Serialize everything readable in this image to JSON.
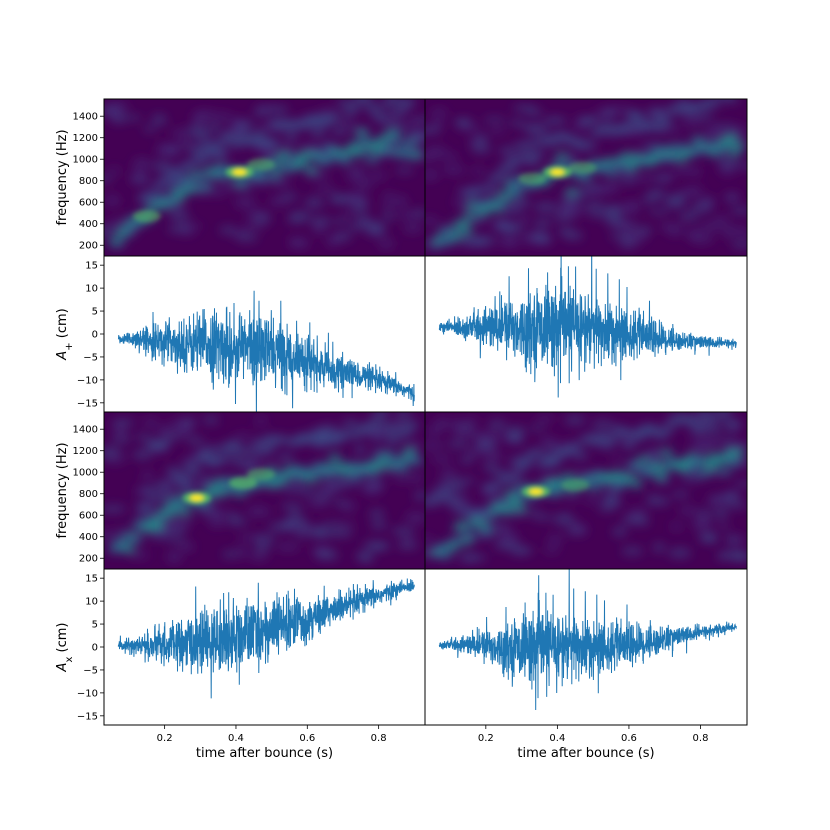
{
  "chart_data": {
    "type": "figure-grid",
    "xlabel": "time after bounce (s)",
    "x_ticks": [
      0.2,
      0.4,
      0.6,
      0.8
    ],
    "x_range": [
      0.03,
      0.93
    ],
    "colors": {
      "line": "#1f77b4",
      "cmap_low": "#440154",
      "cmap_high": "#fde725"
    },
    "rows": [
      {
        "kind": "spectrogram",
        "ylabel": "frequency (Hz)",
        "ylim": [
          100,
          1560
        ],
        "yticks": [
          200,
          400,
          600,
          800,
          1000,
          1200,
          1400
        ]
      },
      {
        "kind": "line",
        "ylabel": "A+ (cm)",
        "ylim": [
          -17,
          17
        ],
        "yticks": [
          -15,
          -10,
          -5,
          0,
          5,
          10,
          15
        ]
      },
      {
        "kind": "spectrogram",
        "ylabel": "frequency (Hz)",
        "ylim": [
          100,
          1560
        ],
        "yticks": [
          200,
          400,
          600,
          800,
          1000,
          1200,
          1400
        ]
      },
      {
        "kind": "line",
        "ylabel": "Ax (cm)",
        "ylim": [
          -17,
          17
        ],
        "yticks": [
          -15,
          -10,
          -5,
          0,
          5,
          10,
          15
        ]
      }
    ],
    "spectrogram_tracks": [
      [
        [
          0.05,
          200
        ],
        [
          0.15,
          480
        ],
        [
          0.25,
          700
        ],
        [
          0.35,
          830
        ],
        [
          0.41,
          880
        ],
        [
          0.5,
          930
        ],
        [
          0.6,
          1000
        ],
        [
          0.75,
          1080
        ],
        [
          0.9,
          1150
        ]
      ],
      [
        [
          0.05,
          200
        ],
        [
          0.15,
          450
        ],
        [
          0.25,
          650
        ],
        [
          0.35,
          820
        ],
        [
          0.4,
          880
        ],
        [
          0.5,
          920
        ],
        [
          0.6,
          980
        ],
        [
          0.75,
          1070
        ],
        [
          0.9,
          1150
        ]
      ],
      [
        [
          0.05,
          220
        ],
        [
          0.15,
          500
        ],
        [
          0.22,
          650
        ],
        [
          0.29,
          760
        ],
        [
          0.35,
          830
        ],
        [
          0.45,
          900
        ],
        [
          0.55,
          960
        ],
        [
          0.7,
          1030
        ],
        [
          0.9,
          1100
        ]
      ],
      [
        [
          0.05,
          200
        ],
        [
          0.15,
          450
        ],
        [
          0.25,
          650
        ],
        [
          0.33,
          820
        ],
        [
          0.45,
          880
        ],
        [
          0.55,
          940
        ],
        [
          0.7,
          1050
        ],
        [
          0.9,
          1130
        ]
      ]
    ],
    "spectrogram_hotspots": [
      [
        {
          "t": 0.41,
          "f": 880,
          "strength": 1.0
        },
        {
          "t": 0.15,
          "f": 470,
          "strength": 0.6
        },
        {
          "t": 0.47,
          "f": 950,
          "strength": 0.55
        }
      ],
      [
        {
          "t": 0.4,
          "f": 880,
          "strength": 1.0
        },
        {
          "t": 0.33,
          "f": 820,
          "strength": 0.55
        },
        {
          "t": 0.47,
          "f": 920,
          "strength": 0.5
        }
      ],
      [
        {
          "t": 0.29,
          "f": 760,
          "strength": 1.0
        },
        {
          "t": 0.42,
          "f": 900,
          "strength": 0.75
        },
        {
          "t": 0.47,
          "f": 980,
          "strength": 0.55
        }
      ],
      [
        {
          "t": 0.34,
          "f": 820,
          "strength": 1.0
        },
        {
          "t": 0.45,
          "f": 880,
          "strength": 0.45
        }
      ]
    ],
    "waveform_envelopes": [
      {
        "t": [
          0.07,
          0.15,
          0.25,
          0.35,
          0.45,
          0.55,
          0.65,
          0.75,
          0.85,
          0.9
        ],
        "mean": [
          -1,
          -1,
          -2,
          -2.5,
          -3,
          -4.5,
          -7.5,
          -9,
          -11.5,
          -13
        ],
        "amp": [
          0.8,
          2.5,
          5,
          7,
          7.5,
          6,
          3.5,
          2.5,
          1.8,
          1.5
        ]
      },
      {
        "t": [
          0.07,
          0.15,
          0.25,
          0.35,
          0.45,
          0.55,
          0.65,
          0.75,
          0.85,
          0.9
        ],
        "mean": [
          1.5,
          1.5,
          1.5,
          1.5,
          1.5,
          0.5,
          -0.5,
          -1.5,
          -2,
          -2
        ],
        "amp": [
          0.8,
          2.5,
          5.5,
          7.5,
          8.5,
          6.5,
          4,
          1.8,
          1,
          0.8
        ]
      },
      {
        "t": [
          0.07,
          0.15,
          0.25,
          0.35,
          0.45,
          0.55,
          0.65,
          0.75,
          0.85,
          0.9
        ],
        "mean": [
          0.3,
          0.3,
          0.5,
          1.5,
          3,
          5,
          7.5,
          10,
          12.5,
          13.5
        ],
        "amp": [
          0.8,
          2.5,
          5,
          6.5,
          6.5,
          5.5,
          3.5,
          2.5,
          1.5,
          1.2
        ]
      },
      {
        "t": [
          0.07,
          0.15,
          0.25,
          0.35,
          0.45,
          0.55,
          0.65,
          0.75,
          0.85,
          0.9
        ],
        "mean": [
          0.5,
          0.5,
          0,
          0,
          0,
          0,
          1,
          2.5,
          3.8,
          4.5
        ],
        "amp": [
          0.6,
          2,
          4.5,
          7.5,
          7,
          5,
          3.5,
          1.8,
          1,
          0.8
        ]
      }
    ]
  }
}
